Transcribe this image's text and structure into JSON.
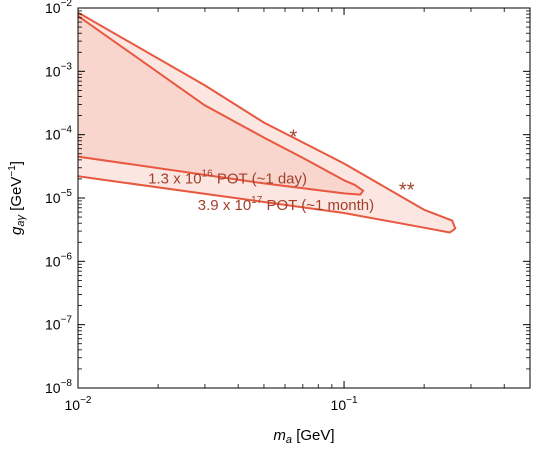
{
  "chart_data": {
    "type": "area",
    "xlabel": {
      "main": "m",
      "sub": "a",
      "unit": "[GeV]"
    },
    "ylabel": {
      "main": "g",
      "sub": "aγ",
      "unit_pre": "[GeV",
      "unit_sup": "−1",
      "unit_post": "]"
    },
    "x_scale": "log",
    "y_scale": "log",
    "xlim": [
      0.01,
      0.5
    ],
    "ylim": [
      1e-08,
      0.01
    ],
    "x_ticks": [
      {
        "value": 0.01,
        "base": "10",
        "exp": "−2"
      },
      {
        "value": 0.1,
        "base": "10",
        "exp": "−1"
      }
    ],
    "y_ticks": [
      {
        "value": 1e-08,
        "base": "10",
        "exp": "−8"
      },
      {
        "value": 1e-07,
        "base": "10",
        "exp": "−7"
      },
      {
        "value": 1e-06,
        "base": "10",
        "exp": "−6"
      },
      {
        "value": 1e-05,
        "base": "10",
        "exp": "−5"
      },
      {
        "value": 0.0001,
        "base": "10",
        "exp": "−4"
      },
      {
        "value": 0.001,
        "base": "10",
        "exp": "−3"
      },
      {
        "value": 0.01,
        "base": "10",
        "exp": "−2"
      }
    ],
    "regions": [
      {
        "label_pre": "3.9 x 10",
        "label_sup": "17",
        "label_post": " POT (~1 month)",
        "marker": "**",
        "label_at": [
          0.0605,
          6.5e-06
        ],
        "marker_at": [
          0.172,
          1.05e-05
        ],
        "fill": "#fbe6e1",
        "stroke": "#e8573f",
        "boundary": [
          [
            0.01,
            2.2e-05
          ],
          [
            0.1,
            5.8e-06
          ],
          [
            0.2,
            3.4e-06
          ],
          [
            0.25,
            2.85e-06
          ],
          [
            0.262,
            3.3e-06
          ],
          [
            0.255,
            4.4e-06
          ],
          [
            0.2,
            6.5e-06
          ],
          [
            0.1,
            3.5e-05
          ],
          [
            0.05,
            0.000155
          ],
          [
            0.03,
            0.0006
          ],
          [
            0.01,
            0.0085
          ]
        ]
      },
      {
        "label_pre": "1.3 x 10",
        "label_sup": "16",
        "label_post": " POT (~1 day)",
        "marker": "*",
        "label_at": [
          0.0365,
          1.7e-05
        ],
        "marker_at": [
          0.0645,
          7.2e-05
        ],
        "fill": "#f8d5cd",
        "stroke": "#e8573f",
        "boundary": [
          [
            0.01,
            4.5e-05
          ],
          [
            0.05,
            1.7e-05
          ],
          [
            0.1,
            1.18e-05
          ],
          [
            0.115,
            1.13e-05
          ],
          [
            0.118,
            1.3e-05
          ],
          [
            0.11,
            1.6e-05
          ],
          [
            0.1,
            1.9e-05
          ],
          [
            0.07,
            4.3e-05
          ],
          [
            0.05,
            9e-05
          ],
          [
            0.03,
            0.00029
          ],
          [
            0.01,
            0.0075
          ]
        ]
      }
    ]
  }
}
